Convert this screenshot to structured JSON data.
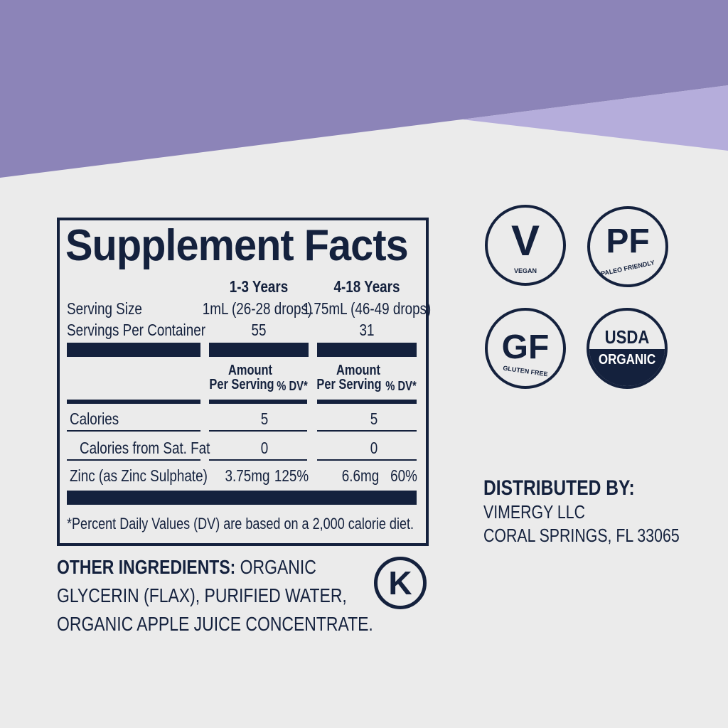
{
  "colors": {
    "navy": "#14213d",
    "background": "#ebebeb",
    "purple": "#8c84b8",
    "light_purple": "#b5addb"
  },
  "facts": {
    "title": "Supplement Facts",
    "columns": [
      "1-3 Years",
      "4-18 Years"
    ],
    "serving_size": {
      "label": "Serving Size",
      "values": [
        "1mL (26-28 drops)",
        "1.75mL (46-49 drops)"
      ]
    },
    "servings_per_container": {
      "label": "Servings Per Container",
      "values": [
        "55",
        "31"
      ]
    },
    "amount_header": {
      "line1": "Amount",
      "line2": "Per Serving",
      "dv": "% DV*"
    },
    "rows": [
      {
        "label": "Calories",
        "col1_amount": "5",
        "col2_amount": "5"
      },
      {
        "label": "Calories from Sat. Fat",
        "col1_amount": "0",
        "col2_amount": "0"
      },
      {
        "label": "Zinc (as Zinc Sulphate)",
        "col1_amount": "3.75mg",
        "col1_dv": "125%",
        "col2_amount": "6.6mg",
        "col2_dv": "60%"
      }
    ],
    "footnote": "*Percent Daily Values (DV) are based on a 2,000 calorie diet."
  },
  "ingredients": {
    "label": "OTHER INGREDIENTS:",
    "line1": "ORGANIC",
    "line2": "GLYCERIN (FLAX), PURIFIED WATER,",
    "line3": "ORGANIC APPLE JUICE CONCENTRATE."
  },
  "kosher": {
    "letter": "K",
    "icon": "kosher-k-icon"
  },
  "badges": [
    {
      "big": "V",
      "small": "VEGAN",
      "icon": "vegan-badge-icon"
    },
    {
      "big": "PF",
      "small": "PALEO FRIENDLY",
      "icon": "paleo-friendly-badge-icon"
    },
    {
      "big": "GF",
      "small": "GLUTEN FREE",
      "icon": "gluten-free-badge-icon"
    },
    {
      "big": "USDA",
      "small": "ORGANIC",
      "icon": "usda-organic-badge-icon"
    }
  ],
  "distributor": {
    "label": "DISTRIBUTED BY:",
    "name": "VIMERGY LLC",
    "address": "CORAL SPRINGS, FL 33065"
  }
}
